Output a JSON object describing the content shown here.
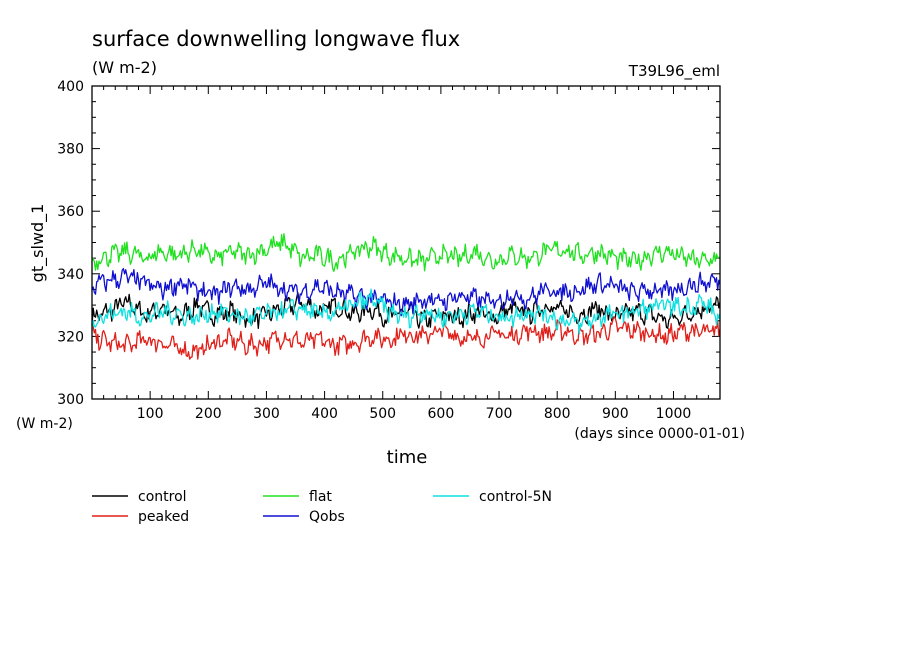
{
  "chart_data": {
    "type": "line",
    "title": "surface downwelling longwave flux",
    "subtitle": "(W m-2)",
    "run_label": "T39L96_eml",
    "xlabel": "time",
    "x_units": "(days since 0000-01-01)",
    "ylabel": "gt_slwd_1",
    "y_units": "(W m-2)",
    "xlim": [
      0,
      1080
    ],
    "ylim": [
      300,
      400
    ],
    "x_ticks": [
      100,
      200,
      300,
      400,
      500,
      600,
      700,
      800,
      900,
      1000
    ],
    "x_tick_labels": [
      "100",
      "200",
      "300",
      "400",
      "500",
      "600",
      "700",
      "800",
      "900",
      "1000"
    ],
    "y_ticks": [
      300,
      320,
      340,
      360,
      380,
      400
    ],
    "y_tick_labels": [
      "300",
      "320",
      "340",
      "360",
      "380",
      "400"
    ],
    "grid": false,
    "legend_position": "bottom",
    "series": [
      {
        "name": "control",
        "color": "#000000",
        "x": [
          0,
          30,
          60,
          90,
          120,
          150,
          180,
          210,
          240,
          270,
          300,
          330,
          360,
          390,
          420,
          450,
          480,
          510,
          540,
          570,
          600,
          630,
          660,
          690,
          720,
          750,
          780,
          810,
          840,
          870,
          900,
          930,
          960,
          990,
          1020,
          1050,
          1080
        ],
        "y": [
          326,
          328,
          331,
          327,
          329,
          326,
          330,
          327,
          328,
          325,
          327,
          329,
          331,
          328,
          330,
          327,
          329,
          326,
          328,
          325,
          327,
          326,
          328,
          326,
          329,
          327,
          330,
          328,
          327,
          329,
          326,
          328,
          327,
          325,
          327,
          329,
          330
        ]
      },
      {
        "name": "peaked",
        "color": "#e0201a",
        "x": [
          0,
          30,
          60,
          90,
          120,
          150,
          180,
          210,
          240,
          270,
          300,
          330,
          360,
          390,
          420,
          450,
          480,
          510,
          540,
          570,
          600,
          630,
          660,
          690,
          720,
          750,
          780,
          810,
          840,
          870,
          900,
          930,
          960,
          990,
          1020,
          1050,
          1080
        ],
        "y": [
          320,
          318,
          317,
          319,
          318,
          316,
          315,
          318,
          319,
          317,
          318,
          320,
          318,
          319,
          317,
          318,
          320,
          319,
          321,
          320,
          322,
          320,
          319,
          321,
          320,
          322,
          321,
          322,
          320,
          321,
          323,
          322,
          321,
          320,
          322,
          321,
          322
        ]
      },
      {
        "name": "flat",
        "color": "#20e020",
        "x": [
          0,
          30,
          60,
          90,
          120,
          150,
          180,
          210,
          240,
          270,
          300,
          330,
          360,
          390,
          420,
          450,
          480,
          510,
          540,
          570,
          600,
          630,
          660,
          690,
          720,
          750,
          780,
          810,
          840,
          870,
          900,
          930,
          960,
          990,
          1020,
          1050,
          1080
        ],
        "y": [
          344,
          346,
          347,
          345,
          347,
          346,
          348,
          345,
          347,
          346,
          348,
          350,
          345,
          346,
          344,
          347,
          349,
          346,
          345,
          344,
          346,
          345,
          347,
          344,
          346,
          345,
          347,
          348,
          346,
          347,
          345,
          344,
          346,
          347,
          345,
          344,
          345
        ]
      },
      {
        "name": "Qobs",
        "color": "#1010d0",
        "x": [
          0,
          30,
          60,
          90,
          120,
          150,
          180,
          210,
          240,
          270,
          300,
          330,
          360,
          390,
          420,
          450,
          480,
          510,
          540,
          570,
          600,
          630,
          660,
          690,
          720,
          750,
          780,
          810,
          840,
          870,
          900,
          930,
          960,
          990,
          1020,
          1050,
          1080
        ],
        "y": [
          336,
          338,
          339,
          337,
          335,
          337,
          335,
          333,
          336,
          335,
          337,
          335,
          334,
          336,
          334,
          333,
          332,
          331,
          330,
          332,
          331,
          333,
          332,
          331,
          333,
          332,
          335,
          334,
          335,
          337,
          336,
          334,
          335,
          334,
          336,
          337,
          338
        ]
      },
      {
        "name": "control-5N",
        "color": "#10e0e0",
        "x": [
          0,
          30,
          60,
          90,
          120,
          150,
          180,
          210,
          240,
          270,
          300,
          330,
          360,
          390,
          420,
          450,
          480,
          510,
          540,
          570,
          600,
          630,
          660,
          690,
          720,
          750,
          780,
          810,
          840,
          870,
          900,
          930,
          960,
          990,
          1020,
          1050,
          1080
        ],
        "y": [
          325,
          327,
          328,
          326,
          328,
          327,
          326,
          328,
          327,
          326,
          327,
          328,
          329,
          327,
          328,
          330,
          332,
          328,
          326,
          328,
          326,
          327,
          328,
          327,
          326,
          328,
          327,
          325,
          324,
          326,
          327,
          328,
          329,
          330,
          329,
          331,
          326
        ]
      }
    ]
  }
}
